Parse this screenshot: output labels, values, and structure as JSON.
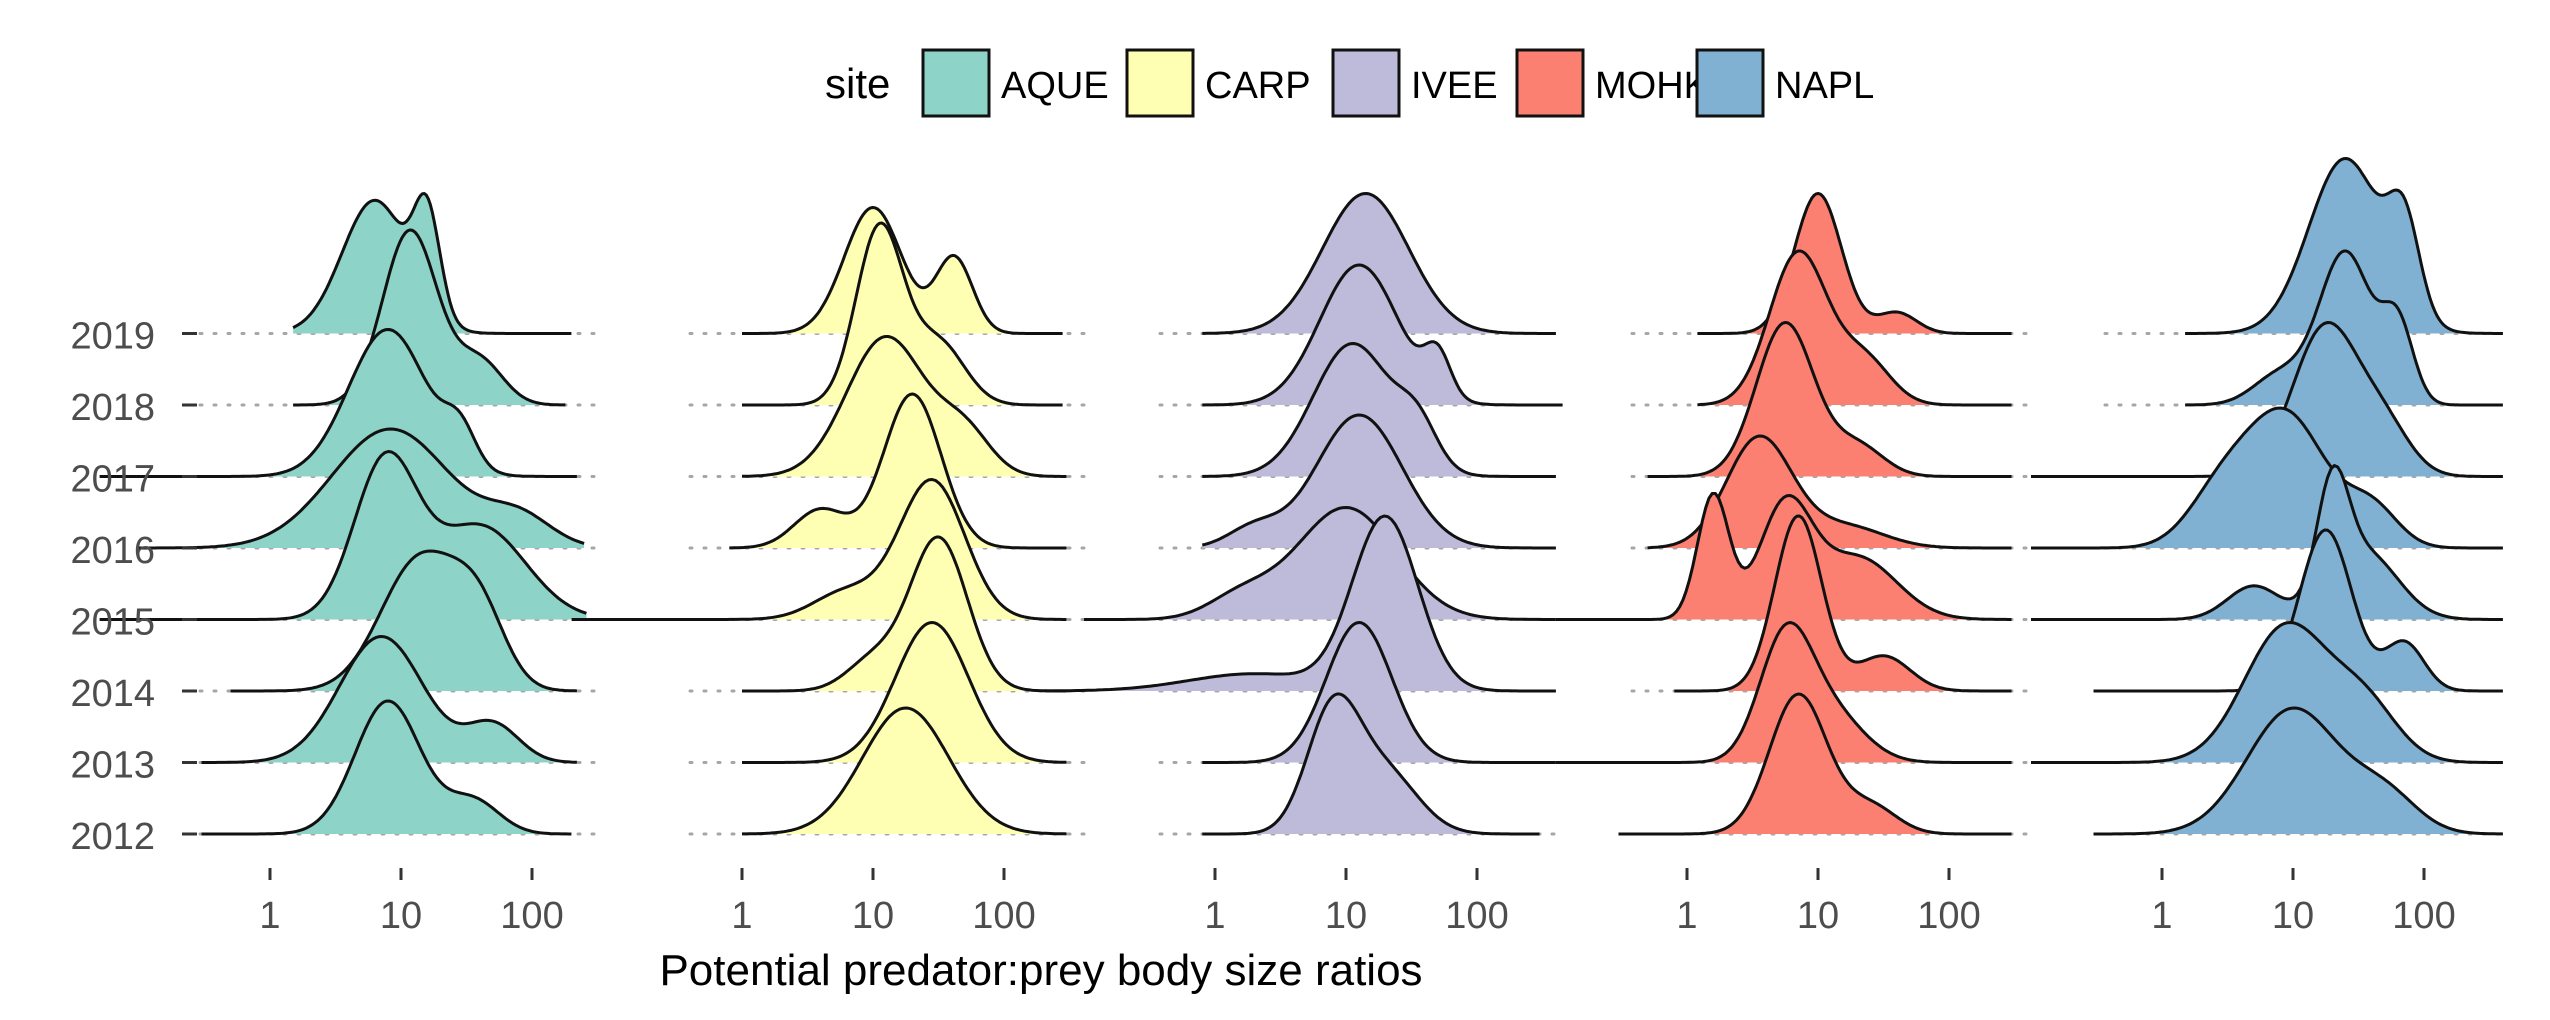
{
  "chart_data": {
    "type": "ridgeline",
    "xlabel": "Potential predator:prey body size ratios",
    "ylabel": "",
    "x_scale": "log10",
    "x_ticks": [
      1,
      10,
      100
    ],
    "x_tick_labels": [
      "1",
      "10",
      "100"
    ],
    "y_categories": [
      "2012",
      "2013",
      "2014",
      "2015",
      "2016",
      "2017",
      "2018",
      "2019"
    ],
    "legend": {
      "title": "site",
      "position": "top",
      "entries": [
        {
          "label": "AQUE",
          "color": "#8dd3c7"
        },
        {
          "label": "CARP",
          "color": "#ffffb3"
        },
        {
          "label": "IVEE",
          "color": "#bebada"
        },
        {
          "label": "MOHK",
          "color": "#fb8072"
        },
        {
          "label": "NAPL",
          "color": "#80b1d3"
        }
      ]
    },
    "grid": false,
    "panels": [
      {
        "site": "AQUE",
        "color": "#8dd3c7",
        "ridges": {
          "2019": {
            "range": [
              1.5,
              200
            ],
            "comps": [
              [
                1,
                0.8,
                0.25
              ],
              [
                0.75,
                1.2,
                0.1
              ]
            ],
            "height": 1.0
          },
          "2018": {
            "range": [
              1.5,
              180
            ],
            "comps": [
              [
                1,
                1.07,
                0.21
              ],
              [
                0.25,
                1.6,
                0.18
              ]
            ],
            "height": 1.25
          },
          "2017": {
            "range": [
              0.05,
              220
            ],
            "comps": [
              [
                1,
                0.9,
                0.3
              ],
              [
                0.25,
                1.45,
                0.12
              ]
            ],
            "height": 1.05
          },
          "2016": {
            "range": [
              0.1,
              250
            ],
            "comps": [
              [
                1,
                0.92,
                0.45
              ],
              [
                0.25,
                1.9,
                0.25
              ]
            ],
            "height": 0.85
          },
          "2015": {
            "range": [
              0.05,
              260
            ],
            "comps": [
              [
                1,
                0.88,
                0.24
              ],
              [
                0.6,
                1.6,
                0.35
              ]
            ],
            "height": 1.2
          },
          "2014": {
            "range": [
              0.5,
              220
            ],
            "comps": [
              [
                1,
                1.15,
                0.3
              ],
              [
                0.5,
                1.6,
                0.2
              ]
            ],
            "height": 1.0
          },
          "2013": {
            "range": [
              0.3,
              220
            ],
            "comps": [
              [
                1,
                0.85,
                0.32
              ],
              [
                0.3,
                1.7,
                0.2
              ]
            ],
            "height": 0.9
          },
          "2012": {
            "range": [
              0.3,
              200
            ],
            "comps": [
              [
                1,
                0.9,
                0.25
              ],
              [
                0.25,
                1.55,
                0.2
              ]
            ],
            "height": 0.95
          }
        }
      },
      {
        "site": "CARP",
        "color": "#ffffb3",
        "ridges": {
          "2019": {
            "range": [
              1.0,
              280
            ],
            "comps": [
              [
                1,
                1.0,
                0.22
              ],
              [
                0.6,
                1.62,
                0.14
              ]
            ],
            "height": 0.9
          },
          "2018": {
            "range": [
              1.0,
              280
            ],
            "comps": [
              [
                1,
                1.05,
                0.18
              ],
              [
                0.35,
                1.5,
                0.2
              ]
            ],
            "height": 1.3
          },
          "2017": {
            "range": [
              1.0,
              300
            ],
            "comps": [
              [
                1,
                1.1,
                0.3
              ],
              [
                0.3,
                1.7,
                0.2
              ]
            ],
            "height": 1.0
          },
          "2016": {
            "range": [
              0.8,
              300
            ],
            "comps": [
              [
                1,
                1.3,
                0.22
              ],
              [
                0.25,
                0.6,
                0.2
              ]
            ],
            "height": 1.1
          },
          "2015": {
            "range": [
              0.05,
              300
            ],
            "comps": [
              [
                1,
                1.45,
                0.25
              ],
              [
                0.2,
                0.8,
                0.25
              ]
            ],
            "height": 1.0
          },
          "2014": {
            "range": [
              1.0,
              300
            ],
            "comps": [
              [
                1,
                1.5,
                0.22
              ],
              [
                0.2,
                1.0,
                0.2
              ]
            ],
            "height": 1.1
          },
          "2013": {
            "range": [
              1.0,
              300
            ],
            "comps": [
              [
                1,
                1.45,
                0.28
              ]
            ],
            "height": 1.0
          },
          "2012": {
            "range": [
              1.0,
              300
            ],
            "comps": [
              [
                1,
                1.25,
                0.33
              ]
            ],
            "height": 0.9
          }
        }
      },
      {
        "site": "IVEE",
        "color": "#bebada",
        "ridges": {
          "2019": {
            "range": [
              0.8,
              400
            ],
            "comps": [
              [
                1,
                1.15,
                0.33
              ]
            ],
            "height": 1.0
          },
          "2018": {
            "range": [
              0.8,
              450
            ],
            "comps": [
              [
                1,
                1.1,
                0.3
              ],
              [
                0.3,
                1.7,
                0.1
              ]
            ],
            "height": 1.0
          },
          "2017": {
            "range": [
              0.8,
              400
            ],
            "comps": [
              [
                1,
                1.05,
                0.3
              ],
              [
                0.3,
                1.55,
                0.15
              ]
            ],
            "height": 0.95
          },
          "2016": {
            "range": [
              0.8,
              400
            ],
            "comps": [
              [
                1,
                1.1,
                0.33
              ],
              [
                0.15,
                0.3,
                0.2
              ]
            ],
            "height": 0.95
          },
          "2015": {
            "range": [
              0.1,
              400
            ],
            "comps": [
              [
                1,
                1.0,
                0.38
              ],
              [
                0.2,
                0.2,
                0.25
              ]
            ],
            "height": 0.8
          },
          "2014": {
            "range": [
              0.0,
              400
            ],
            "comps": [
              [
                1,
                1.3,
                0.25
              ],
              [
                0.1,
                0.3,
                0.5
              ]
            ],
            "height": 1.25
          },
          "2013": {
            "range": [
              0.8,
              400
            ],
            "comps": [
              [
                1,
                1.1,
                0.25
              ]
            ],
            "height": 1.0
          },
          "2012": {
            "range": [
              0.8,
              300
            ],
            "comps": [
              [
                1,
                0.9,
                0.2
              ],
              [
                0.5,
                1.3,
                0.25
              ]
            ],
            "height": 1.0
          }
        }
      },
      {
        "site": "MOHK",
        "color": "#fb8072",
        "ridges": {
          "2019": {
            "range": [
              1.2,
              300
            ],
            "comps": [
              [
                1,
                1.0,
                0.18
              ],
              [
                0.15,
                1.6,
                0.15
              ]
            ],
            "height": 1.0
          },
          "2018": {
            "range": [
              1.2,
              300
            ],
            "comps": [
              [
                1,
                0.85,
                0.22
              ],
              [
                0.3,
                1.35,
                0.2
              ]
            ],
            "height": 1.1
          },
          "2017": {
            "range": [
              0.5,
              300
            ],
            "comps": [
              [
                1,
                0.75,
                0.22
              ],
              [
                0.2,
                1.3,
                0.2
              ]
            ],
            "height": 1.1
          },
          "2016": {
            "range": [
              0.5,
              300
            ],
            "comps": [
              [
                1,
                0.55,
                0.25
              ],
              [
                0.2,
                1.2,
                0.3
              ]
            ],
            "height": 0.8
          },
          "2015": {
            "range": [
              0.1,
              300
            ],
            "comps": [
              [
                1,
                0.2,
                0.12
              ],
              [
                0.9,
                0.75,
                0.2
              ],
              [
                0.5,
                1.3,
                0.3
              ]
            ],
            "height": 0.9
          },
          "2014": {
            "range": [
              0.8,
              300
            ],
            "comps": [
              [
                1,
                0.85,
                0.18
              ],
              [
                0.2,
                1.5,
                0.2
              ]
            ],
            "height": 1.25
          },
          "2013": {
            "range": [
              0.1,
              300
            ],
            "comps": [
              [
                1,
                0.75,
                0.2
              ],
              [
                0.4,
                1.1,
                0.25
              ]
            ],
            "height": 1.0
          },
          "2012": {
            "range": [
              0.3,
              300
            ],
            "comps": [
              [
                1,
                0.85,
                0.22
              ],
              [
                0.2,
                1.4,
                0.2
              ]
            ],
            "height": 1.0
          }
        }
      },
      {
        "site": "NAPL",
        "color": "#80b1d3",
        "ridges": {
          "2019": {
            "range": [
              1.5,
              400
            ],
            "comps": [
              [
                1,
                1.4,
                0.28
              ],
              [
                0.5,
                1.85,
                0.12
              ]
            ],
            "height": 1.25
          },
          "2018": {
            "range": [
              1.5,
              400
            ],
            "comps": [
              [
                1,
                1.4,
                0.2
              ],
              [
                0.5,
                1.8,
                0.12
              ],
              [
                0.2,
                0.9,
                0.2
              ]
            ],
            "height": 1.1
          },
          "2017": {
            "range": [
              0.1,
              400
            ],
            "comps": [
              [
                1,
                1.25,
                0.25
              ],
              [
                0.3,
                1.7,
                0.2
              ]
            ],
            "height": 1.1
          },
          "2016": {
            "range": [
              0.1,
              400
            ],
            "comps": [
              [
                1,
                0.95,
                0.3
              ],
              [
                0.4,
                0.45,
                0.25
              ],
              [
                0.3,
                1.6,
                0.2
              ]
            ],
            "height": 1.0
          },
          "2015": {
            "range": [
              0.1,
              400
            ],
            "comps": [
              [
                1,
                1.3,
                0.12
              ],
              [
                0.6,
                1.55,
                0.25
              ],
              [
                0.3,
                0.7,
                0.2
              ]
            ],
            "height": 1.1
          },
          "2014": {
            "range": [
              0.3,
              400
            ],
            "comps": [
              [
                1,
                1.25,
                0.2
              ],
              [
                0.3,
                1.85,
                0.15
              ]
            ],
            "height": 1.15
          },
          "2013": {
            "range": [
              0.1,
              400
            ],
            "comps": [
              [
                1,
                0.95,
                0.32
              ],
              [
                0.4,
                1.55,
                0.25
              ]
            ],
            "height": 1.0
          },
          "2012": {
            "range": [
              0.3,
              400
            ],
            "comps": [
              [
                1,
                1.0,
                0.35
              ],
              [
                0.3,
                1.7,
                0.25
              ]
            ],
            "height": 0.9
          }
        }
      }
    ]
  }
}
